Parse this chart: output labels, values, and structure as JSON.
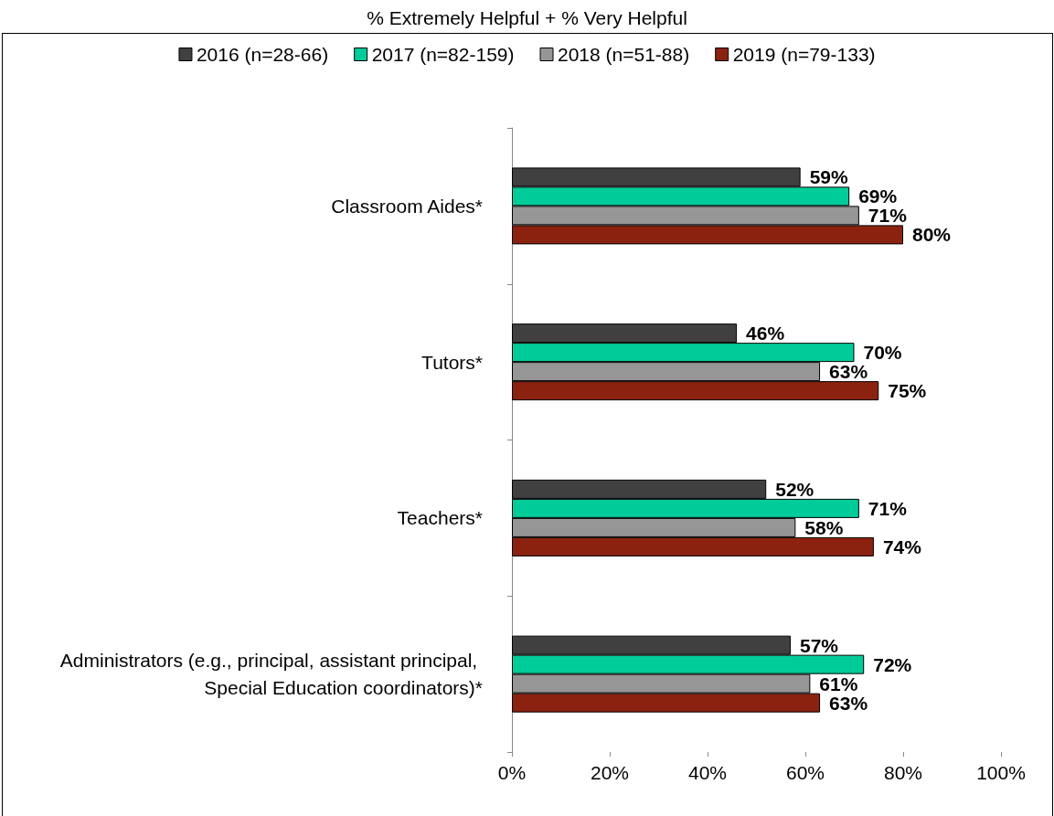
{
  "chart_data": {
    "type": "bar",
    "orientation": "horizontal",
    "title": "% Extremely Helpful + % Very Helpful",
    "categories": [
      "Classroom Aides*",
      "Tutors*",
      "Teachers*",
      "Administrators (e.g., principal, assistant principal, Special Education coordinators)*"
    ],
    "series": [
      {
        "name": "2016 (n=28-66)",
        "color": "#404040",
        "values": [
          59,
          46,
          52,
          57
        ],
        "value_labels": [
          "59%",
          "46%",
          "52%",
          "57%"
        ]
      },
      {
        "name": "2017 (n=82-159)",
        "color": "#00cc99",
        "values": [
          69,
          70,
          71,
          72
        ],
        "value_labels": [
          "69%",
          "70%",
          "71%",
          "72%"
        ]
      },
      {
        "name": "2018 (n=51-88)",
        "color": "#969696",
        "values": [
          71,
          63,
          58,
          61
        ],
        "value_labels": [
          "71%",
          "63%",
          "58%",
          "61%"
        ]
      },
      {
        "name": "2019 (n=79-133)",
        "color": "#8b2210",
        "values": [
          80,
          75,
          74,
          63
        ],
        "value_labels": [
          "80%",
          "75%",
          "74%",
          "63%"
        ]
      }
    ],
    "xlim": [
      0,
      100
    ],
    "xticks": [
      {
        "value": 0,
        "label": "0%"
      },
      {
        "value": 20,
        "label": "20%"
      },
      {
        "value": 40,
        "label": "40%"
      },
      {
        "value": 60,
        "label": "60%"
      },
      {
        "value": 80,
        "label": "80%"
      },
      {
        "value": 100,
        "label": "100%"
      }
    ],
    "grid": false,
    "legend": "top"
  }
}
